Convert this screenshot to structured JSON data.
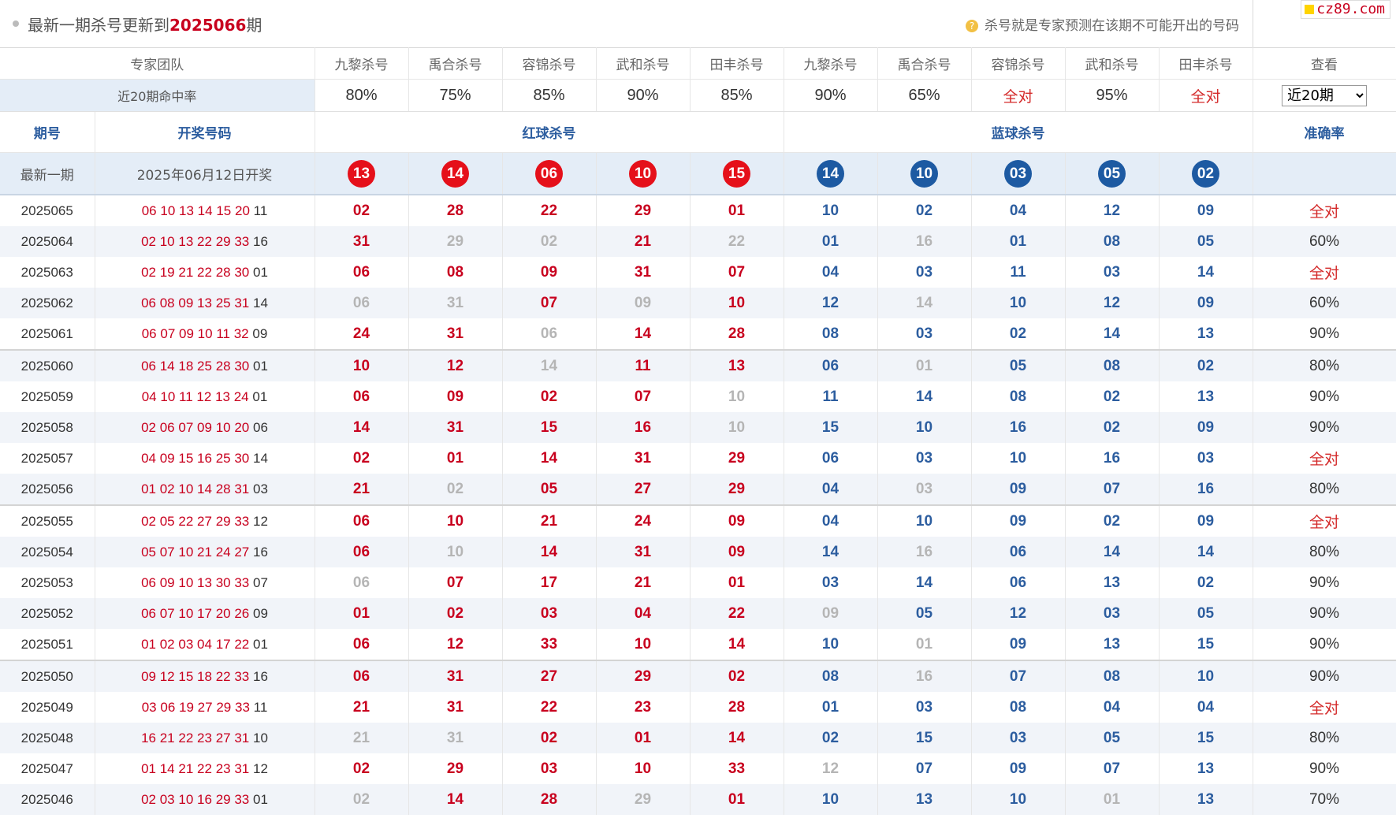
{
  "header": {
    "title_prefix": "最新一期杀号更新到",
    "title_period": "2025066",
    "title_suffix": "期",
    "hint": "杀号就是专家预测在该期不可能开出的号码",
    "logo": "cz89.com"
  },
  "experts": {
    "label": "专家团队",
    "names": [
      "九黎杀号",
      "禹合杀号",
      "容锦杀号",
      "武和杀号",
      "田丰杀号",
      "九黎杀号",
      "禹合杀号",
      "容锦杀号",
      "武和杀号",
      "田丰杀号"
    ],
    "view_label": "查看"
  },
  "hit_rate": {
    "label": "近20期命中率",
    "values": [
      "80%",
      "75%",
      "85%",
      "90%",
      "85%",
      "90%",
      "65%",
      "全对",
      "95%",
      "全对"
    ],
    "select_value": "近20期"
  },
  "columns": {
    "period": "期号",
    "draw": "开奖号码",
    "red": "红球杀号",
    "blue": "蓝球杀号",
    "accuracy": "准确率"
  },
  "latest": {
    "label": "最新一期",
    "draw_date": "2025年06月12日开奖",
    "red_kills": [
      "13",
      "14",
      "06",
      "10",
      "15"
    ],
    "blue_kills": [
      "14",
      "10",
      "03",
      "05",
      "02"
    ]
  },
  "rows": [
    {
      "period": "2025065",
      "reds": [
        "06",
        "10",
        "13",
        "14",
        "15",
        "20"
      ],
      "blue": "11",
      "kills": [
        "02",
        "28",
        "22",
        "29",
        "01",
        "10",
        "02",
        "04",
        "12",
        "09"
      ],
      "miss": [],
      "acc": "全对"
    },
    {
      "period": "2025064",
      "reds": [
        "02",
        "10",
        "13",
        "22",
        "29",
        "33"
      ],
      "blue": "16",
      "kills": [
        "31",
        "29",
        "02",
        "21",
        "22",
        "01",
        "16",
        "01",
        "08",
        "05"
      ],
      "miss": [
        1,
        2,
        4,
        6
      ],
      "acc": "60%"
    },
    {
      "period": "2025063",
      "reds": [
        "02",
        "19",
        "21",
        "22",
        "28",
        "30"
      ],
      "blue": "01",
      "kills": [
        "06",
        "08",
        "09",
        "31",
        "07",
        "04",
        "03",
        "11",
        "03",
        "14"
      ],
      "miss": [],
      "acc": "全对"
    },
    {
      "period": "2025062",
      "reds": [
        "06",
        "08",
        "09",
        "13",
        "25",
        "31"
      ],
      "blue": "14",
      "kills": [
        "06",
        "31",
        "07",
        "09",
        "10",
        "12",
        "14",
        "10",
        "12",
        "09"
      ],
      "miss": [
        0,
        1,
        3,
        6
      ],
      "acc": "60%"
    },
    {
      "period": "2025061",
      "reds": [
        "06",
        "07",
        "09",
        "10",
        "11",
        "32"
      ],
      "blue": "09",
      "kills": [
        "24",
        "31",
        "06",
        "14",
        "28",
        "08",
        "03",
        "02",
        "14",
        "13"
      ],
      "miss": [
        2
      ],
      "acc": "90%"
    },
    {
      "period": "2025060",
      "reds": [
        "06",
        "14",
        "18",
        "25",
        "28",
        "30"
      ],
      "blue": "01",
      "kills": [
        "10",
        "12",
        "14",
        "11",
        "13",
        "06",
        "01",
        "05",
        "08",
        "02"
      ],
      "miss": [
        2,
        6
      ],
      "acc": "80%"
    },
    {
      "period": "2025059",
      "reds": [
        "04",
        "10",
        "11",
        "12",
        "13",
        "24"
      ],
      "blue": "01",
      "kills": [
        "06",
        "09",
        "02",
        "07",
        "10",
        "11",
        "14",
        "08",
        "02",
        "13"
      ],
      "miss": [
        4
      ],
      "acc": "90%"
    },
    {
      "period": "2025058",
      "reds": [
        "02",
        "06",
        "07",
        "09",
        "10",
        "20"
      ],
      "blue": "06",
      "kills": [
        "14",
        "31",
        "15",
        "16",
        "10",
        "15",
        "10",
        "16",
        "02",
        "09"
      ],
      "miss": [
        4
      ],
      "acc": "90%"
    },
    {
      "period": "2025057",
      "reds": [
        "04",
        "09",
        "15",
        "16",
        "25",
        "30"
      ],
      "blue": "14",
      "kills": [
        "02",
        "01",
        "14",
        "31",
        "29",
        "06",
        "03",
        "10",
        "16",
        "03"
      ],
      "miss": [],
      "acc": "全对"
    },
    {
      "period": "2025056",
      "reds": [
        "01",
        "02",
        "10",
        "14",
        "28",
        "31"
      ],
      "blue": "03",
      "kills": [
        "21",
        "02",
        "05",
        "27",
        "29",
        "04",
        "03",
        "09",
        "07",
        "16"
      ],
      "miss": [
        1,
        6
      ],
      "acc": "80%"
    },
    {
      "period": "2025055",
      "reds": [
        "02",
        "05",
        "22",
        "27",
        "29",
        "33"
      ],
      "blue": "12",
      "kills": [
        "06",
        "10",
        "21",
        "24",
        "09",
        "04",
        "10",
        "09",
        "02",
        "09"
      ],
      "miss": [],
      "acc": "全对"
    },
    {
      "period": "2025054",
      "reds": [
        "05",
        "07",
        "10",
        "21",
        "24",
        "27"
      ],
      "blue": "16",
      "kills": [
        "06",
        "10",
        "14",
        "31",
        "09",
        "14",
        "16",
        "06",
        "14",
        "14"
      ],
      "miss": [
        1,
        6
      ],
      "acc": "80%"
    },
    {
      "period": "2025053",
      "reds": [
        "06",
        "09",
        "10",
        "13",
        "30",
        "33"
      ],
      "blue": "07",
      "kills": [
        "06",
        "07",
        "17",
        "21",
        "01",
        "03",
        "14",
        "06",
        "13",
        "02"
      ],
      "miss": [
        0
      ],
      "acc": "90%"
    },
    {
      "period": "2025052",
      "reds": [
        "06",
        "07",
        "10",
        "17",
        "20",
        "26"
      ],
      "blue": "09",
      "kills": [
        "01",
        "02",
        "03",
        "04",
        "22",
        "09",
        "05",
        "12",
        "03",
        "05"
      ],
      "miss": [
        5
      ],
      "acc": "90%"
    },
    {
      "period": "2025051",
      "reds": [
        "01",
        "02",
        "03",
        "04",
        "17",
        "22"
      ],
      "blue": "01",
      "kills": [
        "06",
        "12",
        "33",
        "10",
        "14",
        "10",
        "01",
        "09",
        "13",
        "15"
      ],
      "miss": [
        6
      ],
      "acc": "90%"
    },
    {
      "period": "2025050",
      "reds": [
        "09",
        "12",
        "15",
        "18",
        "22",
        "33"
      ],
      "blue": "16",
      "kills": [
        "06",
        "31",
        "27",
        "29",
        "02",
        "08",
        "16",
        "07",
        "08",
        "10"
      ],
      "miss": [
        6
      ],
      "acc": "90%"
    },
    {
      "period": "2025049",
      "reds": [
        "03",
        "06",
        "19",
        "27",
        "29",
        "33"
      ],
      "blue": "11",
      "kills": [
        "21",
        "31",
        "22",
        "23",
        "28",
        "01",
        "03",
        "08",
        "04",
        "04"
      ],
      "miss": [],
      "acc": "全对"
    },
    {
      "period": "2025048",
      "reds": [
        "16",
        "21",
        "22",
        "23",
        "27",
        "31"
      ],
      "blue": "10",
      "kills": [
        "21",
        "31",
        "02",
        "01",
        "14",
        "02",
        "15",
        "03",
        "05",
        "15"
      ],
      "miss": [
        0,
        1
      ],
      "acc": "80%"
    },
    {
      "period": "2025047",
      "reds": [
        "01",
        "14",
        "21",
        "22",
        "23",
        "31"
      ],
      "blue": "12",
      "kills": [
        "02",
        "29",
        "03",
        "10",
        "33",
        "12",
        "07",
        "09",
        "07",
        "13"
      ],
      "miss": [
        5
      ],
      "acc": "90%"
    },
    {
      "period": "2025046",
      "reds": [
        "02",
        "03",
        "10",
        "16",
        "29",
        "33"
      ],
      "blue": "01",
      "kills": [
        "02",
        "14",
        "28",
        "29",
        "01",
        "10",
        "13",
        "10",
        "01",
        "13"
      ],
      "miss": [
        0,
        3,
        8
      ],
      "acc": "70%"
    }
  ],
  "colors": {
    "red": "#c8001e",
    "blue": "#2c5d9f",
    "miss": "#b5b5b5",
    "accent_bg": "#e4edf7"
  }
}
